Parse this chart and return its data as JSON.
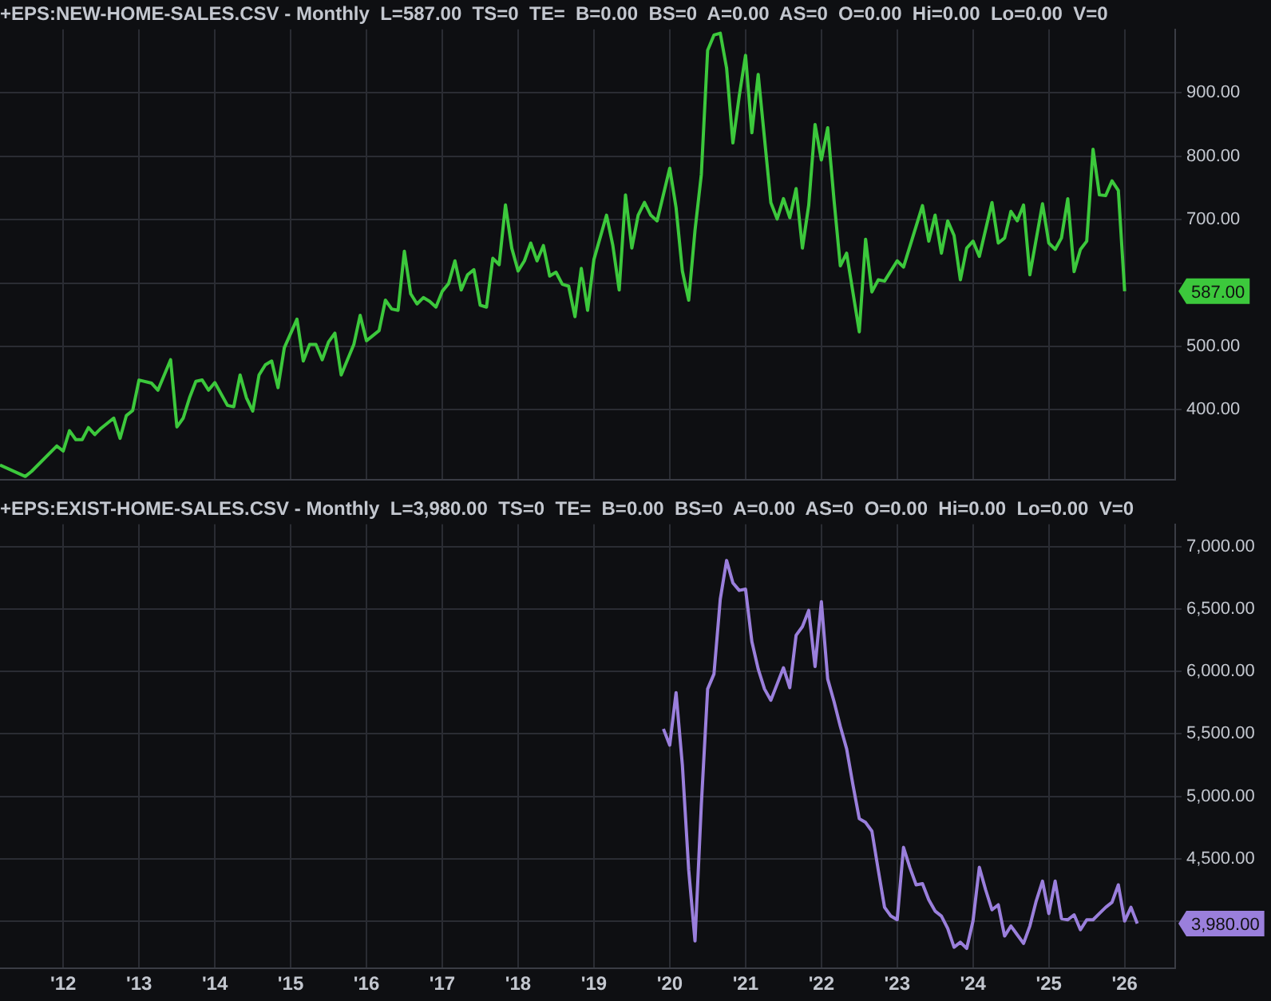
{
  "chart_data": [
    {
      "type": "line",
      "title": "+EPS:NEW-HOME-SALES.CSV - Monthly  L=587.00  TS=0  TE=  B=0.00  BS=0  A=0.00  AS=0  O=0.00  Hi=0.00  Lo=0.00  V=0",
      "x": [
        "2011-03",
        "2011-07",
        "2011-08",
        "2011-12",
        "2012-01",
        "2012-02",
        "2012-03",
        "2012-04",
        "2012-05",
        "2012-06",
        "2012-07",
        "2012-09",
        "2012-10",
        "2012-11",
        "2012-12",
        "2013-01",
        "2013-03",
        "2013-04",
        "2013-06",
        "2013-07",
        "2013-08",
        "2013-09",
        "2013-10",
        "2013-11",
        "2013-12",
        "2014-01",
        "2014-03",
        "2014-04",
        "2014-05",
        "2014-06",
        "2014-07",
        "2014-08",
        "2014-09",
        "2014-10",
        "2014-11",
        "2014-12",
        "2015-02",
        "2015-03",
        "2015-04",
        "2015-05",
        "2015-06",
        "2015-07",
        "2015-08",
        "2015-09",
        "2015-11",
        "2015-12",
        "2016-01",
        "2016-03",
        "2016-04",
        "2016-05",
        "2016-06",
        "2016-07",
        "2016-08",
        "2016-09",
        "2016-10",
        "2016-11",
        "2016-12",
        "2017-01",
        "2017-02",
        "2017-03",
        "2017-04",
        "2017-05",
        "2017-06",
        "2017-07",
        "2017-08",
        "2017-09",
        "2017-10",
        "2017-11",
        "2017-12",
        "2018-01",
        "2018-02",
        "2018-03",
        "2018-04",
        "2018-05",
        "2018-06",
        "2018-07",
        "2018-08",
        "2018-09",
        "2018-10",
        "2018-11",
        "2018-12",
        "2019-01",
        "2019-03",
        "2019-04",
        "2019-05",
        "2019-06",
        "2019-07",
        "2019-08",
        "2019-09",
        "2019-10",
        "2019-11",
        "2020-01",
        "2020-02",
        "2020-03",
        "2020-04",
        "2020-05",
        "2020-06",
        "2020-07",
        "2020-08",
        "2020-09",
        "2020-10",
        "2020-11",
        "2020-12",
        "2021-01",
        "2021-02",
        "2021-03",
        "2021-05",
        "2021-06",
        "2021-07",
        "2021-08",
        "2021-09",
        "2021-10",
        "2021-11",
        "2021-12",
        "2022-01",
        "2022-02",
        "2022-03",
        "2022-04",
        "2022-05",
        "2022-07",
        "2022-08",
        "2022-09",
        "2022-10",
        "2022-11",
        "2023-01",
        "2023-02",
        "2023-05",
        "2023-06",
        "2023-07",
        "2023-08",
        "2023-09",
        "2023-10",
        "2023-11",
        "2023-12",
        "2024-01",
        "2024-02",
        "2024-04",
        "2024-05",
        "2024-06",
        "2024-07",
        "2024-08",
        "2024-09",
        "2024-10",
        "2024-12",
        "2025-01",
        "2025-02",
        "2025-03",
        "2025-04",
        "2025-05",
        "2025-06",
        "2025-07",
        "2025-08",
        "2025-09",
        "2025-10",
        "2025-11",
        "2025-12",
        "2026-01"
      ],
      "series": [
        {
          "color": "#3cc83c",
          "values": [
            313,
            295,
            303,
            343,
            335,
            367,
            353,
            353,
            372,
            361,
            371,
            387,
            355,
            391,
            399,
            447,
            442,
            431,
            479,
            373,
            387,
            419,
            445,
            447,
            431,
            443,
            407,
            405,
            455,
            419,
            398,
            455,
            471,
            477,
            435,
            498,
            543,
            477,
            503,
            503,
            479,
            507,
            521,
            455,
            503,
            549,
            509,
            525,
            573,
            559,
            557,
            650,
            583,
            567,
            577,
            571,
            562,
            587,
            599,
            635,
            589,
            613,
            621,
            565,
            562,
            639,
            629,
            723,
            655,
            619,
            635,
            663,
            635,
            659,
            611,
            617,
            598,
            595,
            547,
            623,
            557,
            637,
            707,
            659,
            589,
            739,
            655,
            707,
            727,
            707,
            698,
            781,
            719,
            619,
            573,
            683,
            771,
            967,
            991,
            994,
            939,
            821,
            895,
            959,
            837,
            929,
            727,
            701,
            733,
            703,
            749,
            655,
            723,
            850,
            794,
            845,
            731,
            627,
            647,
            523,
            669,
            586,
            605,
            603,
            635,
            625,
            722,
            666,
            707,
            647,
            698,
            675,
            605,
            655,
            666,
            642,
            727,
            663,
            671,
            713,
            698,
            723,
            613,
            725,
            663,
            653,
            671,
            733,
            618,
            653,
            666,
            811,
            739,
            738,
            761,
            746,
            587
          ]
        }
      ],
      "xlim": [
        "2011-03",
        "2026-09"
      ],
      "xticks": [
        {
          "value": "2012",
          "label": null
        },
        {
          "value": "2013",
          "label": null
        },
        {
          "value": "2014",
          "label": null
        },
        {
          "value": "2015",
          "label": null
        },
        {
          "value": "2016",
          "label": null
        },
        {
          "value": "2017",
          "label": null
        },
        {
          "value": "2018",
          "label": null
        },
        {
          "value": "2019",
          "label": null
        },
        {
          "value": "2020",
          "label": null
        },
        {
          "value": "2021",
          "label": null
        },
        {
          "value": "2022",
          "label": null
        },
        {
          "value": "2023",
          "label": null
        },
        {
          "value": "2024",
          "label": null
        },
        {
          "value": "2025",
          "label": null
        },
        {
          "value": "2026",
          "label": null
        }
      ],
      "ylim": [
        290,
        1000
      ],
      "yticks": [
        {
          "value": 400,
          "label": "400.00"
        },
        {
          "value": 500,
          "label": "500.00"
        },
        {
          "value": 600,
          "label": null
        },
        {
          "value": 700,
          "label": "700.00"
        },
        {
          "value": 800,
          "label": "800.00"
        },
        {
          "value": 900,
          "label": "900.00"
        }
      ],
      "annotations": [
        "587.00"
      ],
      "grid": true,
      "tick_labels": "y",
      "marker": "none"
    },
    {
      "type": "line",
      "title": "+EPS:EXIST-HOME-SALES.CSV - Monthly  L=3,980.00  TS=0  TE=  B=0.00  BS=0  A=0.00  AS=0  O=0.00  Hi=0.00  Lo=0.00  V=0",
      "x": [
        "2019-12",
        "2020-01",
        "2020-02",
        "2020-03",
        "2020-04",
        "2020-05",
        "2020-06",
        "2020-07",
        "2020-08",
        "2020-09",
        "2020-10",
        "2020-11",
        "2020-12",
        "2021-01",
        "2021-02",
        "2021-03",
        "2021-04",
        "2021-05",
        "2021-06",
        "2021-07",
        "2021-08",
        "2021-09",
        "2021-10",
        "2021-11",
        "2021-12",
        "2022-01",
        "2022-02",
        "2022-03",
        "2022-04",
        "2022-05",
        "2022-06",
        "2022-07",
        "2022-08",
        "2022-09",
        "2022-10",
        "2022-11",
        "2022-12",
        "2023-01",
        "2023-02",
        "2023-03",
        "2023-04",
        "2023-05",
        "2023-06",
        "2023-07",
        "2023-08",
        "2023-09",
        "2023-10",
        "2023-11",
        "2023-12",
        "2024-01",
        "2024-02",
        "2024-03",
        "2024-04",
        "2024-05",
        "2024-06",
        "2024-07",
        "2024-08",
        "2024-09",
        "2024-10",
        "2024-11",
        "2024-12",
        "2025-01",
        "2025-02",
        "2025-03",
        "2025-04",
        "2025-05",
        "2025-06",
        "2025-07",
        "2025-08",
        "2025-09",
        "2025-10",
        "2025-11",
        "2025-12",
        "2026-01",
        "2026-02",
        "2026-03"
      ],
      "series": [
        {
          "color": "#9a7fdc",
          "values": [
            5540,
            5410,
            5830,
            5250,
            4410,
            3840,
            4930,
            5860,
            5980,
            6580,
            6890,
            6710,
            6650,
            6660,
            6240,
            6020,
            5860,
            5770,
            5900,
            6030,
            5870,
            6290,
            6360,
            6490,
            6040,
            6560,
            5940,
            5760,
            5560,
            5380,
            5090,
            4820,
            4790,
            4720,
            4410,
            4110,
            4040,
            4010,
            4590,
            4430,
            4290,
            4300,
            4170,
            4080,
            4040,
            3940,
            3790,
            3830,
            3780,
            4000,
            4430,
            4250,
            4090,
            4130,
            3880,
            3960,
            3890,
            3820,
            3960,
            4160,
            4320,
            4060,
            4320,
            4020,
            4010,
            4050,
            3930,
            4010,
            4010,
            4060,
            4110,
            4150,
            4290,
            4000,
            4110,
            3980
          ]
        }
      ],
      "xlim": [
        "2011-03",
        "2026-09"
      ],
      "xticks": [
        {
          "value": "2012",
          "label": "'12"
        },
        {
          "value": "2013",
          "label": "'13"
        },
        {
          "value": "2014",
          "label": "'14"
        },
        {
          "value": "2015",
          "label": "'15"
        },
        {
          "value": "2016",
          "label": "'16"
        },
        {
          "value": "2017",
          "label": "'17"
        },
        {
          "value": "2018",
          "label": "'18"
        },
        {
          "value": "2019",
          "label": "'19"
        },
        {
          "value": "2020",
          "label": "'20"
        },
        {
          "value": "2021",
          "label": "'21"
        },
        {
          "value": "2022",
          "label": "'22"
        },
        {
          "value": "2023",
          "label": "'23"
        },
        {
          "value": "2024",
          "label": "'24"
        },
        {
          "value": "2025",
          "label": "'25"
        },
        {
          "value": "2026",
          "label": "'26"
        }
      ],
      "ylim": [
        3620,
        7180
      ],
      "yticks": [
        {
          "value": 4000,
          "label": null
        },
        {
          "value": 4500,
          "label": "4,500.00"
        },
        {
          "value": 5000,
          "label": "5,000.00"
        },
        {
          "value": 5500,
          "label": "5,500.00"
        },
        {
          "value": 6000,
          "label": "6,000.00"
        },
        {
          "value": 6500,
          "label": "6,500.00"
        },
        {
          "value": 7000,
          "label": "7,000.00"
        }
      ],
      "annotations": [
        "3,980.00"
      ],
      "grid": true,
      "marker": "none"
    }
  ]
}
